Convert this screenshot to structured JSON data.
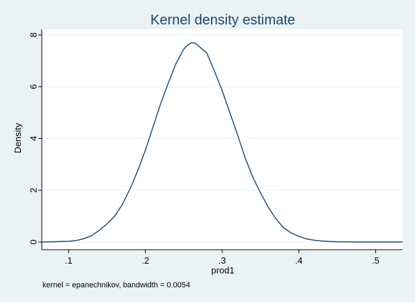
{
  "chart_data": {
    "type": "line",
    "title": "Kernel density estimate",
    "xlabel": "prod1",
    "ylabel": "Density",
    "note": "kernel = epanechnikov, bandwidth = 0.0054",
    "xlim": [
      0.065,
      0.535
    ],
    "ylim": [
      0,
      8
    ],
    "x_ticks": [
      0.1,
      0.2,
      0.3,
      0.4,
      0.5
    ],
    "x_tick_labels": [
      ".1",
      ".2",
      ".3",
      ".4",
      ".5"
    ],
    "y_ticks": [
      0,
      2,
      4,
      6,
      8
    ],
    "y_tick_labels": [
      "0",
      "2",
      "4",
      "6",
      "8"
    ],
    "grid": true,
    "colors": {
      "background": "#eaf2f3",
      "plot_area": "#ffffff",
      "grid": "#eaf2f3",
      "line": "#1a476f",
      "title": "#1a476f"
    },
    "series": [
      {
        "x": [
          0.065,
          0.08,
          0.09,
          0.1,
          0.11,
          0.12,
          0.13,
          0.14,
          0.15,
          0.16,
          0.17,
          0.18,
          0.19,
          0.2,
          0.21,
          0.22,
          0.23,
          0.24,
          0.25,
          0.255,
          0.26,
          0.265,
          0.27,
          0.28,
          0.29,
          0.3,
          0.31,
          0.32,
          0.33,
          0.34,
          0.35,
          0.36,
          0.37,
          0.38,
          0.39,
          0.4,
          0.41,
          0.42,
          0.43,
          0.44,
          0.45,
          0.46,
          0.47,
          0.48,
          0.5,
          0.52,
          0.535
        ],
        "y": [
          0.0,
          0.01,
          0.02,
          0.03,
          0.06,
          0.13,
          0.25,
          0.45,
          0.7,
          1.0,
          1.45,
          2.05,
          2.75,
          3.55,
          4.45,
          5.35,
          6.15,
          6.9,
          7.45,
          7.6,
          7.7,
          7.68,
          7.55,
          7.3,
          6.6,
          5.85,
          5.0,
          4.15,
          3.25,
          2.5,
          1.9,
          1.35,
          0.9,
          0.55,
          0.35,
          0.22,
          0.12,
          0.07,
          0.04,
          0.02,
          0.01,
          0.005,
          0.0,
          0.0,
          0.0,
          0.0,
          0.0
        ]
      }
    ]
  }
}
